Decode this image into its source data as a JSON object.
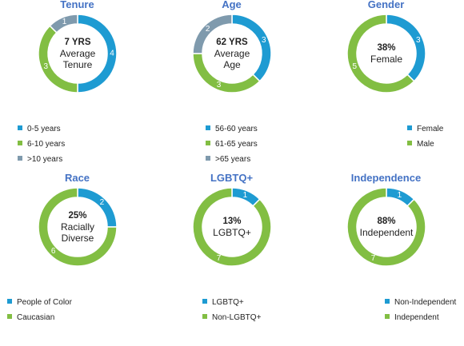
{
  "colors": {
    "blue": "#1E9BD2",
    "green": "#82BE43",
    "gray": "#7F9AAD"
  },
  "chart_data": [
    {
      "type": "pie",
      "donut": true,
      "title": "Tenure",
      "center": [
        "7 YRS",
        "Average",
        "Tenure"
      ],
      "categories": [
        "0-5 years",
        "6-10 years",
        ">10 years"
      ],
      "values": [
        4,
        3,
        1
      ],
      "colors": [
        "#1E9BD2",
        "#82BE43",
        "#7F9AAD"
      ]
    },
    {
      "type": "pie",
      "donut": true,
      "title": "Age",
      "center": [
        "62 YRS",
        "Average",
        "Age"
      ],
      "categories": [
        "56-60 years",
        "61-65 years",
        ">65 years"
      ],
      "values": [
        3,
        3,
        2
      ],
      "colors": [
        "#1E9BD2",
        "#82BE43",
        "#7F9AAD"
      ]
    },
    {
      "type": "pie",
      "donut": true,
      "title": "Gender",
      "center": [
        "38%",
        "Female"
      ],
      "categories": [
        "Female",
        "Male"
      ],
      "values": [
        3,
        5
      ],
      "colors": [
        "#1E9BD2",
        "#82BE43"
      ]
    },
    {
      "type": "pie",
      "donut": true,
      "title": "Race",
      "center": [
        "25%",
        "Racially",
        "Diverse"
      ],
      "categories": [
        "People of Color",
        "Caucasian"
      ],
      "values": [
        2,
        6
      ],
      "colors": [
        "#1E9BD2",
        "#82BE43"
      ]
    },
    {
      "type": "pie",
      "donut": true,
      "title": "LGBTQ+",
      "center": [
        "13%",
        "LGBTQ+"
      ],
      "categories": [
        "LGBTQ+",
        "Non-LGBTQ+"
      ],
      "values": [
        1,
        7
      ],
      "colors": [
        "#1E9BD2",
        "#82BE43"
      ]
    },
    {
      "type": "pie",
      "donut": true,
      "title": "Independence",
      "center": [
        "88%",
        "Independent"
      ],
      "categories": [
        "Non-Independent",
        "Independent"
      ],
      "values": [
        1,
        7
      ],
      "colors": [
        "#1E9BD2",
        "#82BE43"
      ]
    }
  ]
}
